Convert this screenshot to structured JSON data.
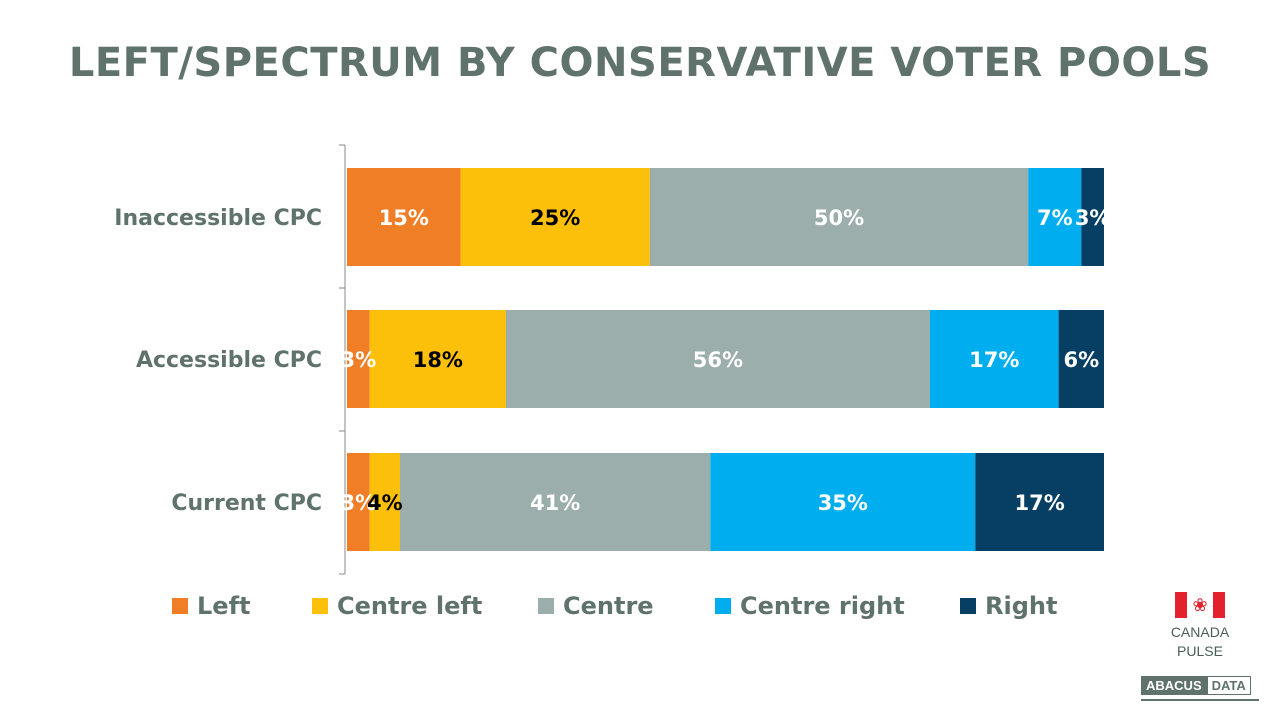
{
  "title": "LEFT/SPECTRUM BY CONSERVATIVE VOTER POOLS",
  "chart_data": {
    "type": "bar",
    "orientation": "horizontal",
    "stacked": true,
    "title": "LEFT/SPECTRUM BY CONSERVATIVE VOTER POOLS",
    "categories": [
      "Inaccessible CPC",
      "Accessible CPC",
      "Current CPC"
    ],
    "series": [
      {
        "name": "Left",
        "color": "#f07e26",
        "label_color": "#ffffff",
        "values": [
          15,
          3,
          3
        ]
      },
      {
        "name": "Centre left",
        "color": "#fcbf0a",
        "label_color": "#000000",
        "values": [
          25,
          18,
          4
        ]
      },
      {
        "name": "Centre",
        "color": "#9caeab",
        "label_color": "#ffffff",
        "values": [
          50,
          56,
          41
        ]
      },
      {
        "name": "Centre right",
        "color": "#00aeef",
        "label_color": "#ffffff",
        "values": [
          7,
          17,
          35
        ]
      },
      {
        "name": "Right",
        "color": "#063f63",
        "label_color": "#ffffff",
        "values": [
          3,
          6,
          17
        ]
      }
    ],
    "value_suffix": "%",
    "xlim": [
      0,
      100
    ],
    "grid": false,
    "legend_position": "bottom"
  },
  "branding": {
    "pulse_line1": "CANADA",
    "pulse_line2": "PULSE",
    "logo_part1": "ABACUS",
    "logo_part2": "DATA",
    "flag_red": "#e3202b"
  }
}
